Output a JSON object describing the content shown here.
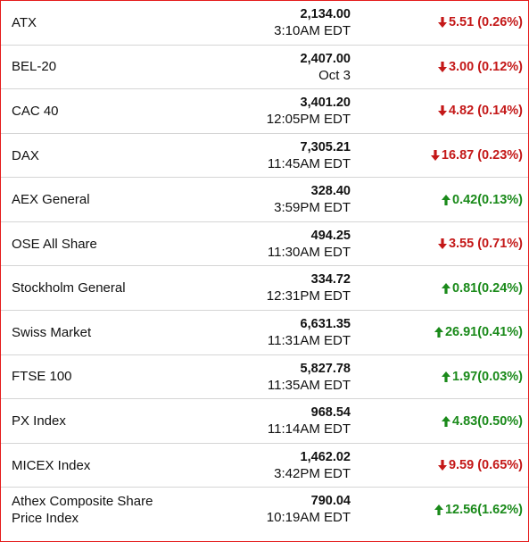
{
  "colors": {
    "border": "#e41b1b",
    "down": "#c41818",
    "up": "#1a8a1a",
    "divider": "#d5d5d5"
  },
  "indices": [
    {
      "name": "ATX",
      "price": "2,134.00",
      "time": "3:10AM EDT",
      "direction": "down",
      "change": "5.51 (0.26%)",
      "icon": "arrow-down-icon"
    },
    {
      "name": "BEL-20",
      "price": "2,407.00",
      "time": "Oct 3",
      "direction": "down",
      "change": "3.00 (0.12%)",
      "icon": "arrow-down-icon"
    },
    {
      "name": "CAC 40",
      "price": "3,401.20",
      "time": "12:05PM EDT",
      "direction": "down",
      "change": "4.82 (0.14%)",
      "icon": "arrow-down-icon"
    },
    {
      "name": "DAX",
      "price": "7,305.21",
      "time": "11:45AM EDT",
      "direction": "down",
      "change": "16.87 (0.23%)",
      "icon": "arrow-down-icon"
    },
    {
      "name": "AEX General",
      "price": "328.40",
      "time": "3:59PM EDT",
      "direction": "up",
      "change": "0.42(0.13%)",
      "icon": "arrow-up-icon"
    },
    {
      "name": "OSE All Share",
      "price": "494.25",
      "time": "11:30AM EDT",
      "direction": "down",
      "change": "3.55 (0.71%)",
      "icon": "arrow-down-icon"
    },
    {
      "name": "Stockholm General",
      "price": "334.72",
      "time": "12:31PM EDT",
      "direction": "up",
      "change": "0.81(0.24%)",
      "icon": "arrow-up-icon"
    },
    {
      "name": "Swiss Market",
      "price": "6,631.35",
      "time": "11:31AM EDT",
      "direction": "up",
      "change": "26.91(0.41%)",
      "icon": "arrow-up-icon"
    },
    {
      "name": "FTSE 100",
      "price": "5,827.78",
      "time": "11:35AM EDT",
      "direction": "up",
      "change": "1.97(0.03%)",
      "icon": "arrow-up-icon"
    },
    {
      "name": "PX Index",
      "price": "968.54",
      "time": "11:14AM EDT",
      "direction": "up",
      "change": "4.83(0.50%)",
      "icon": "arrow-up-icon"
    },
    {
      "name": "MICEX Index",
      "price": "1,462.02",
      "time": "3:42PM EDT",
      "direction": "down",
      "change": "9.59 (0.65%)",
      "icon": "arrow-down-icon"
    },
    {
      "name": "Athex Composite Share Price Index",
      "price": "790.04",
      "time": "10:19AM EDT",
      "direction": "up",
      "change": "12.56(1.62%)",
      "icon": "arrow-up-icon"
    }
  ]
}
